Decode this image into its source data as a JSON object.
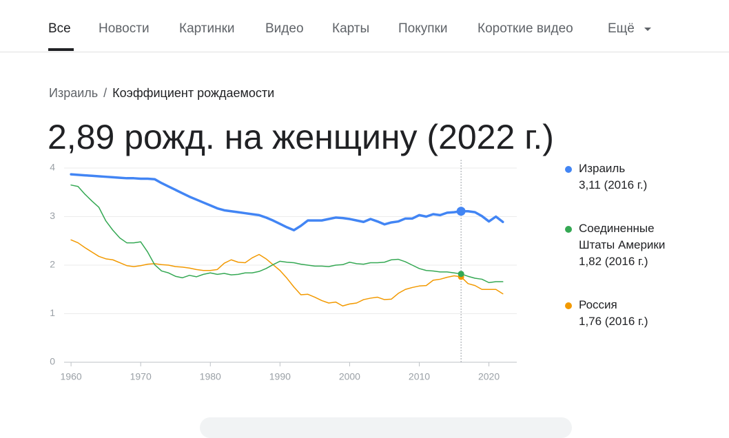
{
  "tabs": [
    "Все",
    "Новости",
    "Картинки",
    "Видео",
    "Карты",
    "Покупки",
    "Короткие видео",
    "Ещё"
  ],
  "breadcrumb": [
    "Израиль",
    "Коэффициент рождаемости"
  ],
  "headline": "2,89 рожд. на женщину (2022 г.)",
  "chart_data": {
    "type": "line",
    "x": [
      1960,
      1961,
      1962,
      1963,
      1964,
      1965,
      1966,
      1967,
      1968,
      1969,
      1970,
      1971,
      1972,
      1973,
      1974,
      1975,
      1976,
      1977,
      1978,
      1979,
      1980,
      1981,
      1982,
      1983,
      1984,
      1985,
      1986,
      1987,
      1988,
      1989,
      1990,
      1991,
      1992,
      1993,
      1994,
      1995,
      1996,
      1997,
      1998,
      1999,
      2000,
      2001,
      2002,
      2003,
      2004,
      2005,
      2006,
      2007,
      2008,
      2009,
      2010,
      2011,
      2012,
      2013,
      2014,
      2015,
      2016,
      2017,
      2018,
      2019,
      2020,
      2021,
      2022
    ],
    "series": [
      {
        "name": "Израиль",
        "legend_label": "3,11 (2016 г.)",
        "color": "#4285f4",
        "width": 3.5,
        "values": [
          3.87,
          3.86,
          3.85,
          3.84,
          3.83,
          3.82,
          3.81,
          3.8,
          3.79,
          3.79,
          3.78,
          3.78,
          3.77,
          3.69,
          3.62,
          3.55,
          3.48,
          3.41,
          3.35,
          3.29,
          3.23,
          3.17,
          3.13,
          3.11,
          3.09,
          3.07,
          3.05,
          3.03,
          2.98,
          2.92,
          2.85,
          2.78,
          2.72,
          2.81,
          2.92,
          2.92,
          2.92,
          2.95,
          2.98,
          2.97,
          2.95,
          2.92,
          2.89,
          2.95,
          2.9,
          2.84,
          2.88,
          2.9,
          2.96,
          2.96,
          3.03,
          3.0,
          3.05,
          3.03,
          3.08,
          3.09,
          3.11,
          3.11,
          3.09,
          3.01,
          2.9,
          3.0,
          2.89
        ]
      },
      {
        "name": "Соединенные Штаты Америки",
        "legend_label": "1,82 (2016 г.)",
        "color": "#34a853",
        "width": 1.5,
        "values": [
          3.65,
          3.62,
          3.46,
          3.32,
          3.19,
          2.91,
          2.72,
          2.56,
          2.46,
          2.46,
          2.48,
          2.27,
          2.01,
          1.88,
          1.84,
          1.77,
          1.74,
          1.79,
          1.76,
          1.81,
          1.84,
          1.81,
          1.83,
          1.8,
          1.81,
          1.84,
          1.84,
          1.87,
          1.93,
          2.01,
          2.08,
          2.06,
          2.05,
          2.02,
          2.0,
          1.98,
          1.98,
          1.97,
          2.0,
          2.01,
          2.06,
          2.03,
          2.02,
          2.05,
          2.05,
          2.06,
          2.11,
          2.12,
          2.07,
          2.0,
          1.93,
          1.89,
          1.88,
          1.86,
          1.86,
          1.84,
          1.82,
          1.77,
          1.73,
          1.71,
          1.64,
          1.66,
          1.66
        ]
      },
      {
        "name": "Россия",
        "legend_label": "1,76 (2016 г.)",
        "color": "#f29900",
        "width": 1.5,
        "values": [
          2.52,
          2.46,
          2.36,
          2.27,
          2.18,
          2.13,
          2.11,
          2.05,
          1.99,
          1.97,
          1.99,
          2.02,
          2.03,
          2.01,
          2.0,
          1.97,
          1.96,
          1.94,
          1.91,
          1.89,
          1.89,
          1.91,
          2.04,
          2.11,
          2.06,
          2.05,
          2.15,
          2.22,
          2.13,
          2.01,
          1.89,
          1.73,
          1.55,
          1.39,
          1.4,
          1.34,
          1.27,
          1.22,
          1.24,
          1.16,
          1.2,
          1.22,
          1.29,
          1.32,
          1.34,
          1.29,
          1.3,
          1.42,
          1.5,
          1.54,
          1.57,
          1.58,
          1.69,
          1.71,
          1.75,
          1.78,
          1.76,
          1.62,
          1.58,
          1.5,
          1.5,
          1.5,
          1.41
        ]
      }
    ],
    "xlim": [
      1959,
      2024
    ],
    "xticks": [
      1960,
      1970,
      1980,
      1990,
      2000,
      2010,
      2020
    ],
    "ylim": [
      0,
      4
    ],
    "yticks": [
      0,
      1,
      2,
      3,
      4
    ],
    "grid": true,
    "highlight_x": 2016
  }
}
